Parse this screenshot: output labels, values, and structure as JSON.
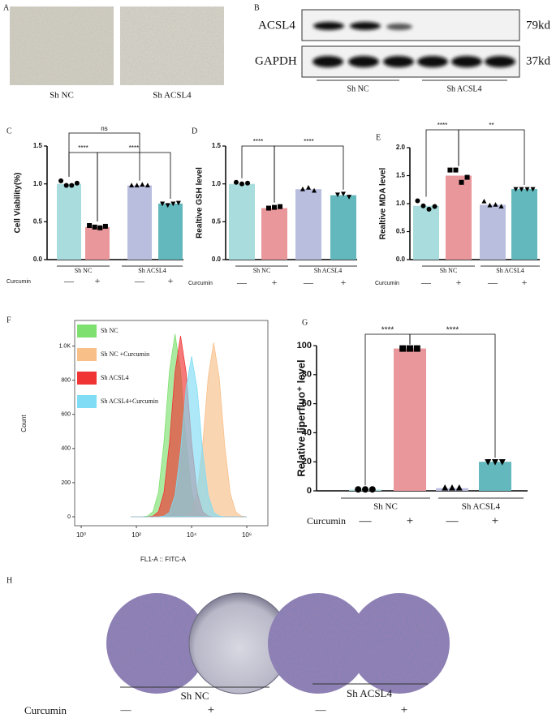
{
  "panel_a": {
    "letter": "A",
    "labels": [
      "Sh NC",
      "Sh ACSL4"
    ]
  },
  "panel_b": {
    "letter": "B",
    "rows": [
      "ACSL4",
      "GAPDH"
    ],
    "sizes": [
      "79kd",
      "37kd"
    ],
    "groups": [
      "Sh NC",
      "Sh ACSL4"
    ]
  },
  "panel_h": {
    "letter": "H",
    "groups": [
      "Sh NC",
      "Sh ACSL4"
    ],
    "treatment_label": "Curcumin",
    "treatment": [
      "—",
      "+",
      "—",
      "+"
    ]
  },
  "chart_data": [
    {
      "type": "bar",
      "panel": "C",
      "ylabel": "Cell Viability(%)",
      "categories": [
        "—",
        "+",
        "—",
        "+"
      ],
      "groups": [
        "Sh NC",
        "Sh ACSL4"
      ],
      "treatment_label": "Curcumin",
      "values": [
        1.0,
        0.43,
        0.98,
        0.74
      ],
      "points": [
        [
          1.04,
          0.98,
          0.98,
          1.01
        ],
        [
          0.45,
          0.43,
          0.42,
          0.44
        ],
        [
          0.98,
          0.98,
          0.99,
          0.98
        ],
        [
          0.74,
          0.72,
          0.74,
          0.75
        ]
      ],
      "markers": [
        "circle",
        "square",
        "triangle-up",
        "triangle-down"
      ],
      "colors": [
        "#a9dcdc",
        "#e9979b",
        "#b9bedf",
        "#62b8bc"
      ],
      "ylim": [
        0,
        1.5
      ],
      "yticks": [
        {
          "value": 0,
          "label": "0.0"
        },
        0.5,
        {
          "value": 1,
          "label": "1.0"
        },
        1.5
      ],
      "significance": [
        "****",
        "ns",
        "****"
      ]
    },
    {
      "type": "bar",
      "panel": "D",
      "ylabel": "Realtive GSH level",
      "categories": [
        "—",
        "+",
        "—",
        "+"
      ],
      "groups": [
        "Sh NC",
        "Sh ACSL4"
      ],
      "treatment_label": "Curcumin",
      "values": [
        1.0,
        0.68,
        0.93,
        0.85
      ],
      "points": [
        [
          1.02,
          1.0,
          1.01
        ],
        [
          0.68,
          0.69,
          0.7
        ],
        [
          0.93,
          0.95,
          0.91
        ],
        [
          0.86,
          0.87,
          0.83
        ]
      ],
      "markers": [
        "circle",
        "square",
        "triangle-up",
        "triangle-down"
      ],
      "colors": [
        "#a9dcdc",
        "#e9979b",
        "#b9bedf",
        "#62b8bc"
      ],
      "ylim": [
        0,
        1.5
      ],
      "yticks": [
        {
          "value": 0,
          "label": "0.0"
        },
        0.5,
        {
          "value": 1,
          "label": "1.0"
        },
        1.5
      ],
      "significance": [
        "****",
        "****"
      ]
    },
    {
      "type": "bar",
      "panel": "E",
      "ylabel": "Realtive MDA level",
      "categories": [
        "—",
        "+",
        "—",
        "+"
      ],
      "groups": [
        "Sh NC",
        "Sh ACSL4"
      ],
      "treatment_label": "Curcumin",
      "values": [
        0.96,
        1.5,
        0.98,
        1.26
      ],
      "points": [
        [
          1.05,
          0.96,
          0.9,
          0.95
        ],
        [
          1.6,
          1.6,
          1.38,
          1.47
        ],
        [
          1.04,
          0.97,
          0.98,
          0.95
        ],
        [
          1.26,
          1.26,
          1.26,
          1.26
        ]
      ],
      "markers": [
        "circle",
        "square",
        "triangle-up",
        "triangle-down"
      ],
      "colors": [
        "#a9dcdc",
        "#e9979b",
        "#b9bedf",
        "#62b8bc"
      ],
      "ylim": [
        0,
        2
      ],
      "yticks": [
        {
          "value": 0,
          "label": "0.0"
        },
        0.5,
        {
          "value": 1,
          "label": "1.0"
        },
        1.5,
        {
          "value": 2,
          "label": "2.0"
        }
      ],
      "significance": [
        "****",
        "**"
      ]
    },
    {
      "type": "area",
      "panel": "F",
      "xlabel": "FL1-A :: FITC-A",
      "ylabel": "Count",
      "xscale": "log",
      "x": [
        63,
        100,
        158,
        251,
        398,
        631,
        1000,
        1585,
        2512,
        3981,
        6310,
        10000,
        15849,
        25119,
        39811,
        63096,
        100000,
        158489,
        251189,
        398107,
        630957,
        1000000
      ],
      "series": [
        {
          "name": "Sh NC",
          "color": "#7ee06e",
          "values": [
            0,
            0,
            0,
            4,
            30,
            144,
            439,
            856,
            1070,
            856,
            439,
            144,
            30,
            4,
            0,
            0,
            0,
            0,
            0,
            0,
            0,
            0
          ]
        },
        {
          "name": "Sh NC +Curcumin",
          "color": "#f8bf88",
          "values": [
            0,
            0,
            0,
            0,
            0,
            0,
            0,
            0,
            0,
            0,
            4,
            29,
            138,
            418,
            816,
            1020,
            816,
            418,
            138,
            29,
            4,
            0
          ]
        },
        {
          "name": "Sh ACSL4",
          "color": "#f03434",
          "values": [
            0,
            0,
            0,
            0,
            4,
            30,
            143,
            435,
            848,
            1060,
            848,
            435,
            143,
            30,
            4,
            0,
            0,
            0,
            0,
            0,
            0,
            0
          ]
        },
        {
          "name": "Sh ACSL4+Curcumin",
          "color": "#7fdcf4",
          "values": [
            0,
            0,
            0,
            0,
            0,
            0,
            4,
            26,
            127,
            385,
            752,
            940,
            752,
            385,
            127,
            26,
            4,
            0,
            0,
            0,
            0,
            0
          ]
        }
      ],
      "xlim": [
        0.58,
        5800000
      ],
      "xticks": [
        {
          "value": 1,
          "label": "10⁰"
        },
        {
          "value": 100,
          "label": "10²"
        },
        {
          "value": 10000,
          "label": "10⁴"
        },
        {
          "value": 1000000,
          "label": "10⁶"
        }
      ],
      "ylim": [
        0,
        1150
      ],
      "yticks": [
        0,
        200,
        400,
        600,
        800,
        {
          "value": 1000,
          "label": "1.0K"
        }
      ],
      "legend": "upper left"
    },
    {
      "type": "bar",
      "panel": "G",
      "ylabel": "Relative liperfluo⁺ level",
      "categories": [
        "—",
        "+",
        "—",
        "+"
      ],
      "groups": [
        "Sh NC",
        "Sh ACSL4"
      ],
      "treatment_label": "Curcumin",
      "values": [
        0.8,
        98,
        1.8,
        20
      ],
      "points": [
        [
          1,
          1,
          1
        ],
        [
          98,
          98,
          98
        ],
        [
          2,
          2,
          2
        ],
        [
          20,
          20,
          20
        ]
      ],
      "markers": [
        "circle",
        "square",
        "triangle-up",
        "triangle-down"
      ],
      "colors": [
        "#a9dcdc",
        "#e9979b",
        "#b9bedf",
        "#62b8bc"
      ],
      "ylim": [
        0,
        100
      ],
      "yticks": [
        0,
        20,
        40,
        60,
        80,
        100
      ],
      "significance": [
        "****",
        "****"
      ]
    }
  ]
}
